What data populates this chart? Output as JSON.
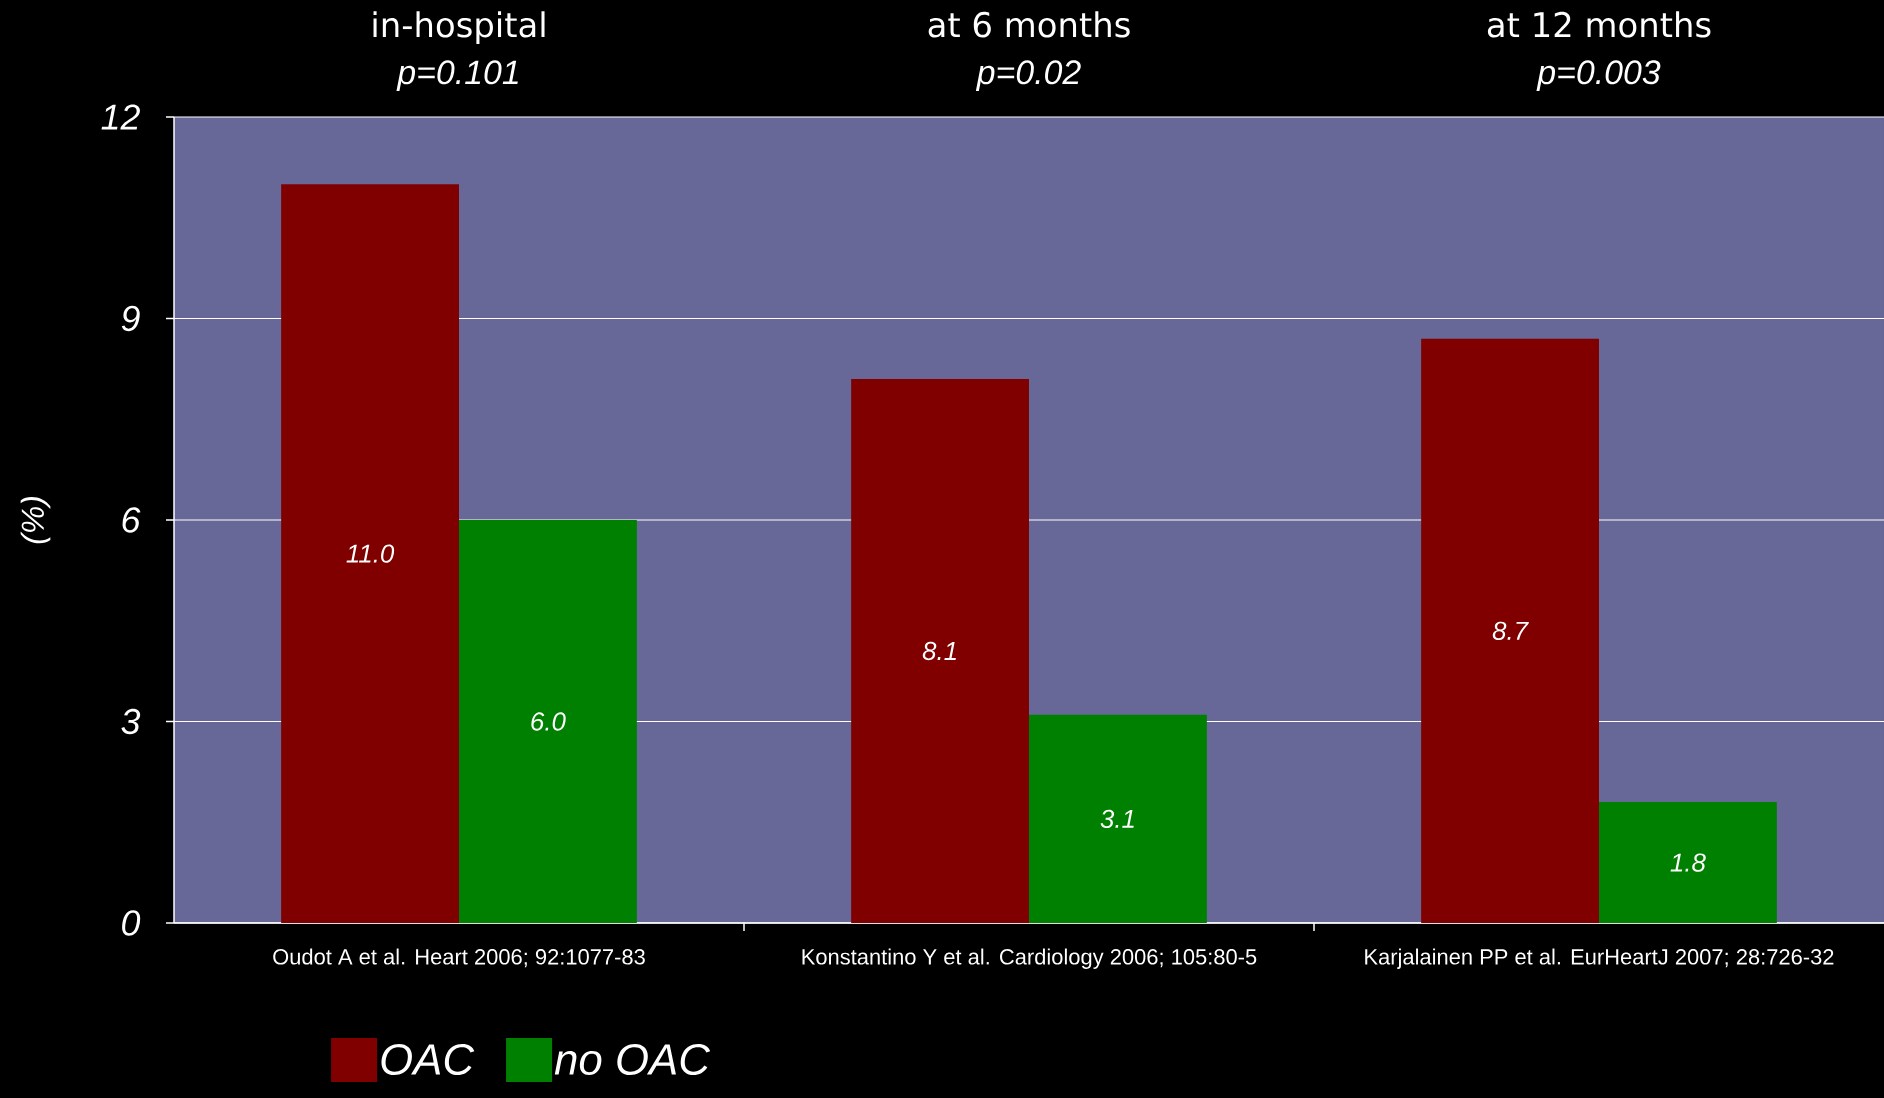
{
  "chart_data": {
    "type": "bar",
    "categories": [
      "Oudot A et al. Heart 2006; 92:1077-83",
      "Konstantino Y et al. Cardiology 2006; 105:80-5",
      "Karjalainen PP et al. EurHeartJ 2007; 28:726-32"
    ],
    "series": [
      {
        "name": "OAC",
        "color": "#800000",
        "values": [
          11.0,
          8.1,
          8.7
        ],
        "value_labels": [
          "11.0",
          "8.1",
          "8.7"
        ]
      },
      {
        "name": "no OAC",
        "color": "#008000",
        "values": [
          6.0,
          3.1,
          1.8
        ],
        "value_labels": [
          "6.0",
          "3.1",
          "1.8"
        ]
      }
    ],
    "ylabel": "(%)",
    "ylim": [
      0,
      12
    ],
    "yticks": [
      0,
      3,
      6,
      9,
      12
    ],
    "grid": "y",
    "legend": "bottom left",
    "annotations": [
      "in-hospital",
      "p=0.101",
      "at 6 months",
      "p=0.02",
      "at 12 months",
      "p=0.003"
    ]
  }
}
